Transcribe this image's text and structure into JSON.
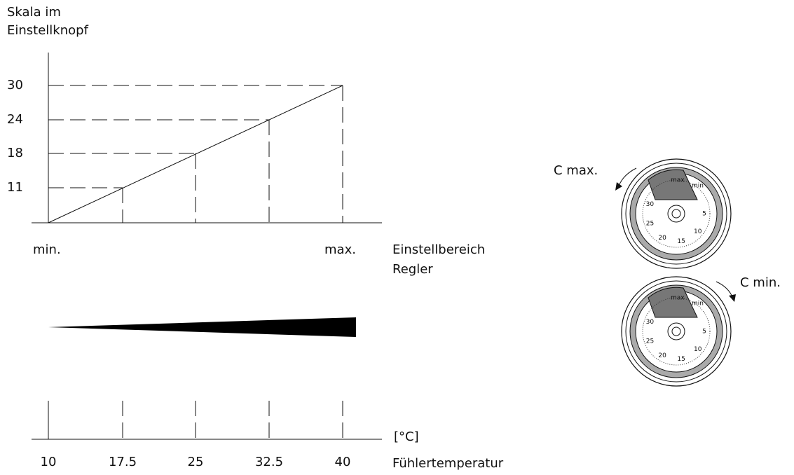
{
  "axis_caption": [
    "Skala im",
    "Einstellknopf"
  ],
  "knob_scale_labels": [
    "30",
    "24",
    "18",
    "11"
  ],
  "range_labels": [
    "min.",
    "max."
  ],
  "range_caption": [
    "Einstellbereich",
    "Regler"
  ],
  "temperature_labels": [
    "10",
    "17.5",
    "25",
    "32.5",
    "40"
  ],
  "unit_label": "[°C]",
  "temperature_caption": "Fühlertemperatur",
  "dial_labels": [
    "C max.",
    "C min."
  ],
  "dial_markers": [
    "max",
    "min"
  ],
  "dial_scale": [
    "5",
    "10",
    "15",
    "20",
    "25",
    "30"
  ]
}
